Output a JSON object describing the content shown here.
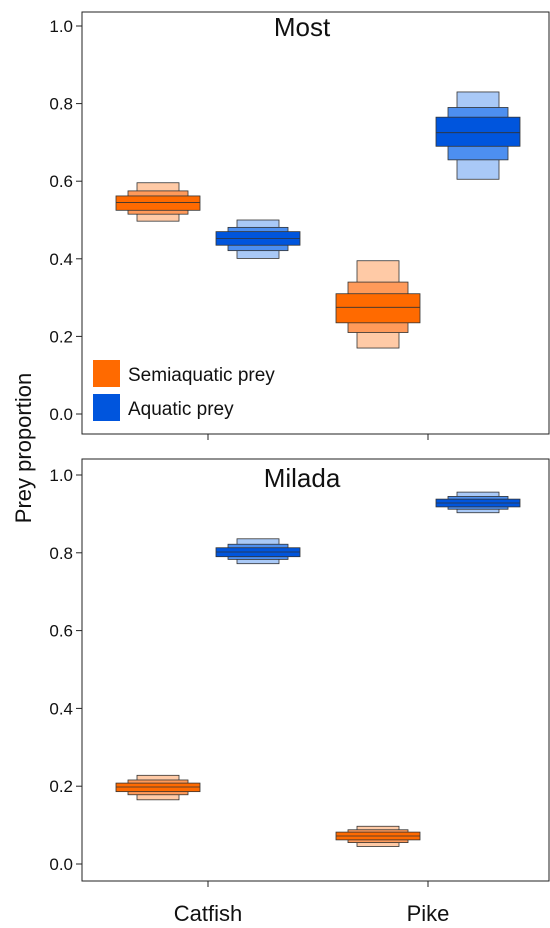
{
  "chart_data": {
    "type": "box",
    "ylabel": "Prey proportion",
    "ylim": [
      0,
      1.0
    ],
    "yticks": [
      "0.0",
      "0.2",
      "0.4",
      "0.6",
      "0.8",
      "1.0"
    ],
    "categories": [
      "Catfish",
      "Pike"
    ],
    "legend": {
      "placement": "bottom-left of top panel",
      "entries": [
        {
          "label": "Semiaquatic prey",
          "color": "#ff6a00"
        },
        {
          "label": "Aquatic prey",
          "color": "#0055dd"
        }
      ]
    },
    "series_colors": {
      "Semiaquatic prey": {
        "light": "#ffcaa6",
        "mid": "#ff9a5a",
        "dark": "#ff6a00"
      },
      "Aquatic prey": {
        "light": "#a9c9f7",
        "mid": "#4d8ff0",
        "dark": "#0055dd"
      }
    },
    "panels": [
      {
        "title": "Most",
        "groups": [
          {
            "category": "Catfish",
            "series": "Semiaquatic prey",
            "median": 0.545,
            "ci50": [
              0.525,
              0.562
            ],
            "ci75": [
              0.515,
              0.575
            ],
            "ci95": [
              0.497,
              0.596
            ]
          },
          {
            "category": "Catfish",
            "series": "Aquatic prey",
            "median": 0.452,
            "ci50": [
              0.435,
              0.47
            ],
            "ci75": [
              0.421,
              0.481
            ],
            "ci95": [
              0.401,
              0.5
            ]
          },
          {
            "category": "Pike",
            "series": "Semiaquatic prey",
            "median": 0.275,
            "ci50": [
              0.235,
              0.31
            ],
            "ci75": [
              0.21,
              0.34
            ],
            "ci95": [
              0.17,
              0.395
            ]
          },
          {
            "category": "Pike",
            "series": "Aquatic prey",
            "median": 0.725,
            "ci50": [
              0.69,
              0.765
            ],
            "ci75": [
              0.655,
              0.79
            ],
            "ci95": [
              0.605,
              0.83
            ]
          }
        ]
      },
      {
        "title": "Milada",
        "groups": [
          {
            "category": "Catfish",
            "series": "Semiaquatic prey",
            "median": 0.198,
            "ci50": [
              0.186,
              0.208
            ],
            "ci75": [
              0.178,
              0.216
            ],
            "ci95": [
              0.165,
              0.228
            ]
          },
          {
            "category": "Catfish",
            "series": "Aquatic prey",
            "median": 0.802,
            "ci50": [
              0.79,
              0.813
            ],
            "ci75": [
              0.783,
              0.822
            ],
            "ci95": [
              0.772,
              0.836
            ]
          },
          {
            "category": "Pike",
            "series": "Semiaquatic prey",
            "median": 0.072,
            "ci50": [
              0.062,
              0.082
            ],
            "ci75": [
              0.055,
              0.088
            ],
            "ci95": [
              0.045,
              0.097
            ]
          },
          {
            "category": "Pike",
            "series": "Aquatic prey",
            "median": 0.928,
            "ci50": [
              0.918,
              0.938
            ],
            "ci75": [
              0.912,
              0.945
            ],
            "ci95": [
              0.903,
              0.956
            ]
          }
        ]
      }
    ]
  }
}
